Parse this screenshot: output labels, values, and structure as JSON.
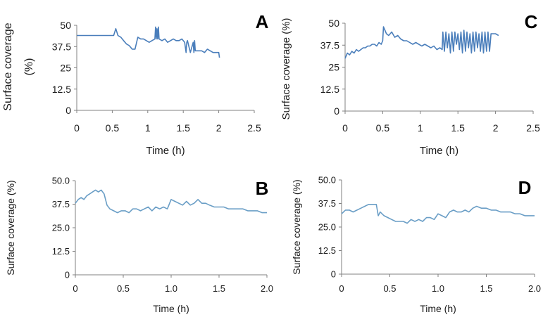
{
  "chart_data": [
    {
      "panel_label": "A",
      "type": "line",
      "xlabel": "Time (h)",
      "ylabel": "Surface coverage (%)",
      "xlim": [
        0,
        2.5
      ],
      "ylim": [
        0,
        50
      ],
      "xticks": [
        "0",
        "0.5",
        "1",
        "1.5",
        "2",
        "2.5"
      ],
      "yticks": [
        "0",
        "12.5",
        "25",
        "37.5",
        "50"
      ],
      "grid": false,
      "color": "#4a7ebb",
      "series": [
        {
          "x": [
            0,
            0.52,
            0.55,
            0.58,
            0.62,
            0.66,
            0.7,
            0.74,
            0.78,
            0.82,
            0.86,
            0.9,
            0.94,
            0.98,
            1.02,
            1.06,
            1.1,
            1.11,
            1.12,
            1.13,
            1.14,
            1.15,
            1.16,
            1.2,
            1.24,
            1.28,
            1.32,
            1.36,
            1.4,
            1.44,
            1.48,
            1.52,
            1.54,
            1.55,
            1.56,
            1.6,
            1.64,
            1.65,
            1.66,
            1.67,
            1.68,
            1.72,
            1.76,
            1.8,
            1.84,
            1.88,
            1.92,
            1.96,
            2.0,
            2.01
          ],
          "y": [
            44,
            44,
            48,
            44,
            43,
            41,
            39,
            38,
            36,
            36,
            43,
            42,
            42,
            41,
            40,
            41,
            42,
            49,
            42,
            48,
            42,
            49,
            42,
            41,
            42,
            40,
            41,
            42,
            41,
            41,
            42,
            40,
            34,
            40,
            41,
            34,
            40,
            34,
            41,
            35,
            35,
            35,
            35,
            34,
            36,
            35,
            34,
            34,
            34,
            31
          ]
        }
      ]
    },
    {
      "panel_label": "B",
      "type": "line",
      "xlabel": "Time (h)",
      "ylabel": "Surface coverage (%)",
      "xlim": [
        0,
        2.0
      ],
      "ylim": [
        0,
        50
      ],
      "xticks": [
        "0",
        "0.5",
        "1.0",
        "1.5",
        "2.0"
      ],
      "yticks": [
        "0",
        "12.5",
        "25.0",
        "37.5",
        "50.0"
      ],
      "grid": false,
      "color": "#6a9ec6",
      "series": [
        {
          "x": [
            0,
            0.03,
            0.06,
            0.09,
            0.12,
            0.15,
            0.18,
            0.21,
            0.24,
            0.27,
            0.3,
            0.33,
            0.36,
            0.4,
            0.44,
            0.48,
            0.52,
            0.56,
            0.6,
            0.64,
            0.68,
            0.72,
            0.76,
            0.8,
            0.84,
            0.88,
            0.92,
            0.96,
            1.0,
            1.04,
            1.08,
            1.12,
            1.16,
            1.2,
            1.24,
            1.28,
            1.32,
            1.36,
            1.4,
            1.45,
            1.5,
            1.55,
            1.6,
            1.65,
            1.7,
            1.75,
            1.8,
            1.85,
            1.9,
            1.95,
            2.0
          ],
          "y": [
            38,
            40,
            41,
            40,
            42,
            43,
            44,
            45,
            44,
            45,
            43,
            37,
            35,
            34,
            33,
            34,
            34,
            33,
            35,
            35,
            34,
            35,
            36,
            34,
            36,
            35,
            36,
            35,
            40,
            39,
            38,
            37,
            39,
            37,
            38,
            40,
            38,
            38,
            37,
            36,
            36,
            36,
            35,
            35,
            35,
            35,
            34,
            34,
            34,
            33,
            33
          ]
        }
      ]
    },
    {
      "panel_label": "C",
      "type": "line",
      "xlabel": "Time (h)",
      "ylabel": "Surface coverage (%)",
      "xlim": [
        0,
        2.5
      ],
      "ylim": [
        0,
        50
      ],
      "xticks": [
        "0",
        "0.5",
        "1",
        "1.5",
        "2",
        "2.5"
      ],
      "yticks": [
        "0",
        "12.5",
        "25",
        "37.5",
        "50"
      ],
      "grid": false,
      "color": "#4a7ebb",
      "series": [
        {
          "x": [
            0,
            0.03,
            0.06,
            0.09,
            0.12,
            0.15,
            0.18,
            0.21,
            0.24,
            0.27,
            0.3,
            0.33,
            0.36,
            0.39,
            0.42,
            0.45,
            0.48,
            0.5,
            0.51,
            0.52,
            0.55,
            0.58,
            0.62,
            0.66,
            0.7,
            0.74,
            0.78,
            0.82,
            0.86,
            0.9,
            0.94,
            0.98,
            1.02,
            1.06,
            1.1,
            1.14,
            1.18,
            1.22,
            1.26,
            1.29,
            1.3,
            1.32,
            1.34,
            1.36,
            1.38,
            1.4,
            1.42,
            1.44,
            1.46,
            1.48,
            1.5,
            1.52,
            1.54,
            1.56,
            1.58,
            1.6,
            1.62,
            1.64,
            1.66,
            1.68,
            1.7,
            1.72,
            1.74,
            1.76,
            1.78,
            1.8,
            1.82,
            1.84,
            1.86,
            1.88,
            1.9,
            1.92,
            1.94,
            2.0,
            2.04
          ],
          "y": [
            30,
            33,
            32,
            34,
            33,
            35,
            34,
            35,
            36,
            36,
            37,
            37,
            38,
            38,
            37,
            39,
            38,
            40,
            48,
            47,
            44,
            43,
            45,
            42,
            43,
            41,
            40,
            40,
            39,
            38,
            39,
            38,
            37,
            38,
            37,
            36,
            37,
            35,
            36,
            35,
            45,
            34,
            45,
            36,
            44,
            33,
            45,
            34,
            45,
            38,
            44,
            35,
            45,
            33,
            46,
            34,
            45,
            36,
            44,
            33,
            45,
            34,
            45,
            36,
            44,
            34,
            45,
            33,
            45,
            34,
            45,
            34,
            44,
            44,
            43
          ]
        }
      ]
    },
    {
      "panel_label": "D",
      "type": "line",
      "xlabel": "Time (h)",
      "ylabel": "Surface coverage (%)",
      "xlim": [
        0,
        2.0
      ],
      "ylim": [
        0,
        50
      ],
      "xticks": [
        "0",
        "0.5",
        "1.0",
        "1.5",
        "2.0"
      ],
      "yticks": [
        "0",
        "12.5",
        "25.0",
        "37.5",
        "50.0"
      ],
      "grid": false,
      "color": "#6a9ec6",
      "series": [
        {
          "x": [
            0,
            0.04,
            0.08,
            0.12,
            0.16,
            0.2,
            0.24,
            0.28,
            0.32,
            0.36,
            0.38,
            0.4,
            0.44,
            0.48,
            0.52,
            0.56,
            0.6,
            0.64,
            0.68,
            0.72,
            0.76,
            0.8,
            0.84,
            0.88,
            0.92,
            0.96,
            1.0,
            1.04,
            1.08,
            1.12,
            1.16,
            1.2,
            1.24,
            1.28,
            1.32,
            1.36,
            1.4,
            1.45,
            1.5,
            1.55,
            1.6,
            1.65,
            1.7,
            1.75,
            1.8,
            1.85,
            1.9,
            1.95,
            2.0
          ],
          "y": [
            32,
            34,
            34,
            33,
            34,
            35,
            36,
            37,
            37,
            37,
            31,
            33,
            31,
            30,
            29,
            28,
            28,
            28,
            27,
            29,
            28,
            29,
            28,
            30,
            30,
            29,
            32,
            31,
            30,
            33,
            34,
            33,
            33,
            34,
            33,
            35,
            36,
            35,
            35,
            34,
            34,
            33,
            33,
            33,
            32,
            32,
            31,
            31,
            31
          ]
        }
      ]
    }
  ]
}
